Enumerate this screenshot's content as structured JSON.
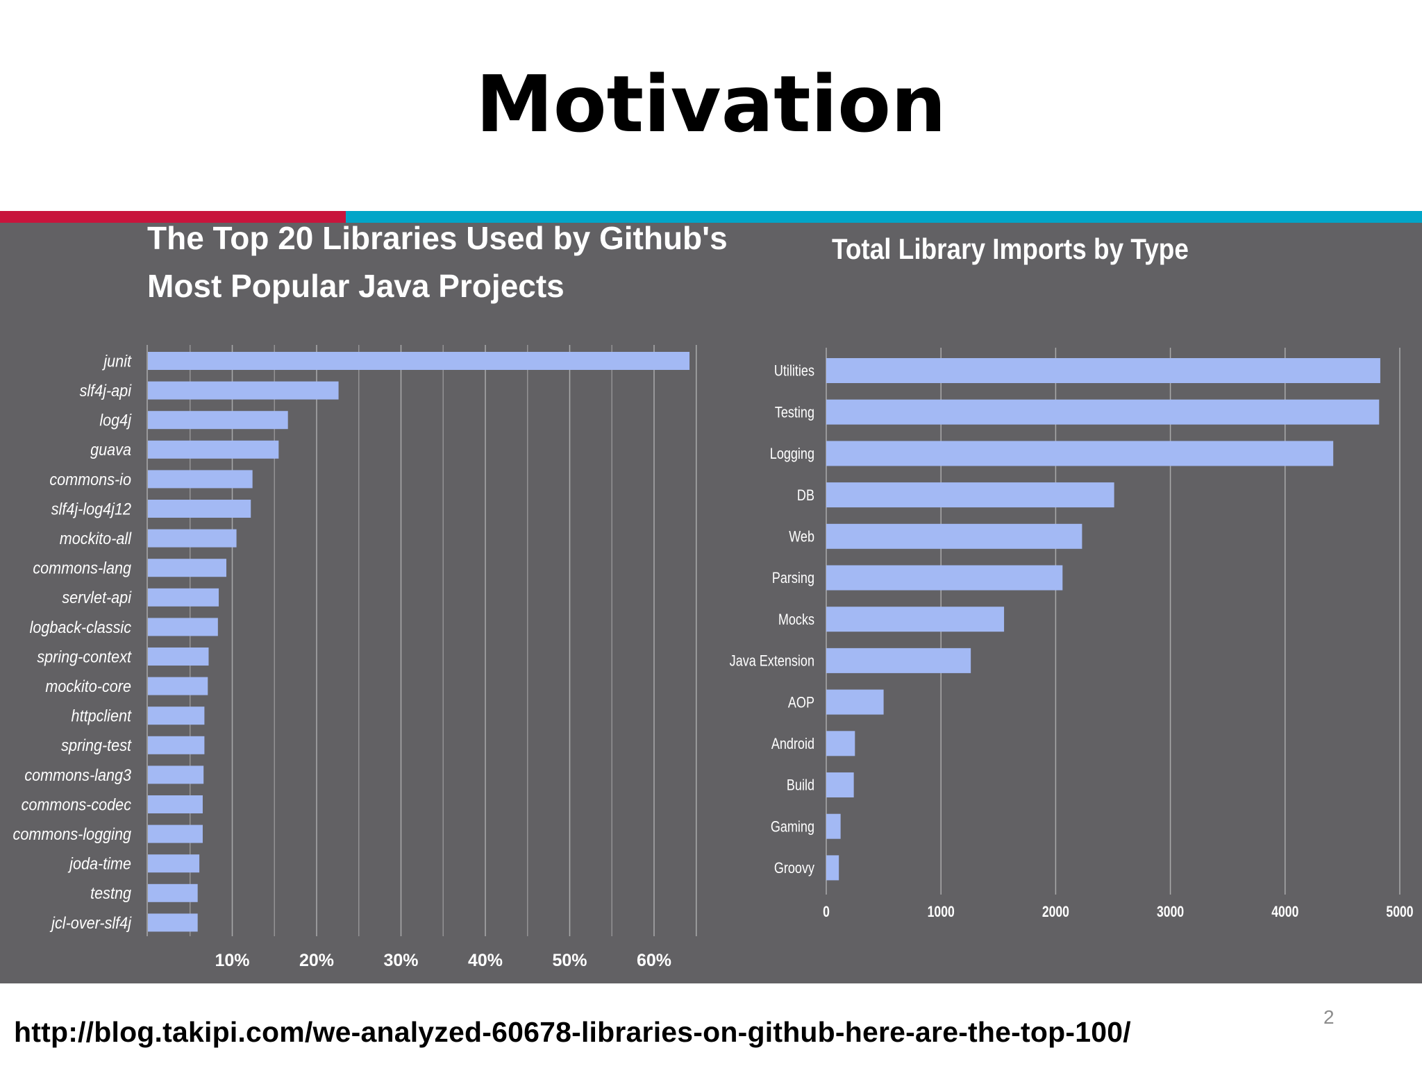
{
  "slide": {
    "title": "Motivation",
    "source_url": "http://blog.takipi.com/we-analyzed-60678-libraries-on-github-here-are-the-top-100/",
    "slide_number": "2"
  },
  "colors": {
    "accent_left": "#c8143c",
    "accent_right": "#00a5c8",
    "panel_background": "#626164",
    "bar": "#a3b9f4",
    "gridline": "#bdbdbd",
    "text": "#ffffff"
  },
  "chart_data": [
    {
      "type": "bar",
      "orientation": "horizontal",
      "title_lines": [
        "The Top 20 Libraries Used by Github's",
        "Most Popular Java Projects"
      ],
      "categories": [
        "junit",
        "slf4j-api",
        "log4j",
        "guava",
        "commons-io",
        "slf4j-log4j12",
        "mockito-all",
        "commons-lang",
        "servlet-api",
        "logback-classic",
        "spring-context",
        "mockito-core",
        "httpclient",
        "spring-test",
        "commons-lang3",
        "commons-codec",
        "commons-logging",
        "joda-time",
        "testng",
        "jcl-over-slf4j"
      ],
      "values": [
        64.2,
        22.6,
        16.6,
        15.5,
        12.4,
        12.2,
        10.5,
        9.3,
        8.4,
        8.3,
        7.2,
        7.1,
        6.7,
        6.7,
        6.6,
        6.5,
        6.5,
        6.1,
        5.9,
        5.9
      ],
      "unit": "%",
      "xlim": [
        0,
        65
      ],
      "xticks": [
        10,
        20,
        30,
        40,
        50,
        60
      ],
      "xtick_labels": [
        "10%",
        "20%",
        "30%",
        "40%",
        "50%",
        "60%"
      ],
      "grid": true
    },
    {
      "type": "bar",
      "orientation": "horizontal",
      "title_lines": [
        "Total Library Imports by Type"
      ],
      "categories": [
        "Utilities",
        "Testing",
        "Logging",
        "DB",
        "Web",
        "Parsing",
        "Mocks",
        "Java Extension",
        "AOP",
        "Android",
        "Build",
        "Gaming",
        "Groovy"
      ],
      "values": [
        4830,
        4820,
        4420,
        2510,
        2230,
        2060,
        1550,
        1260,
        500,
        250,
        240,
        125,
        110
      ],
      "xlim": [
        0,
        5000
      ],
      "xticks": [
        0,
        1000,
        2000,
        3000,
        4000,
        5000
      ],
      "xtick_labels": [
        "0",
        "1000",
        "2000",
        "3000",
        "4000",
        "5000"
      ],
      "grid": true
    }
  ]
}
